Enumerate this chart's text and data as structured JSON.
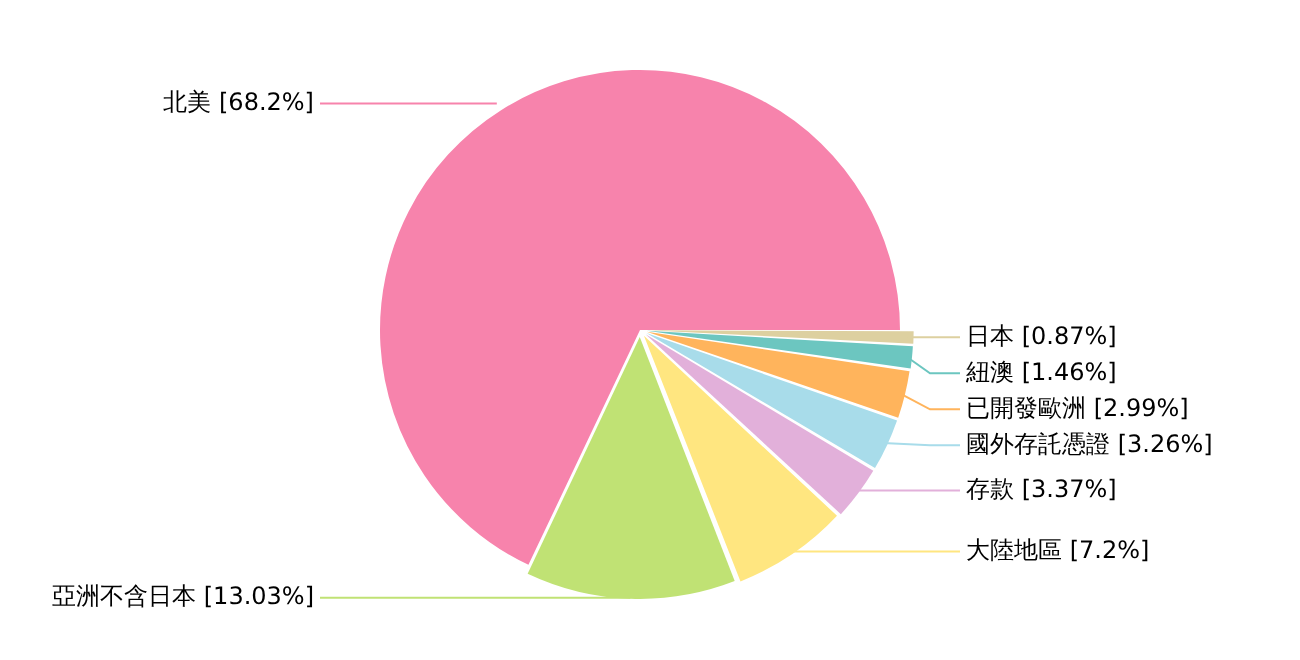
{
  "chart_data": {
    "type": "pie",
    "categories": [
      "北美",
      "日本",
      "紐澳",
      "已開發歐洲",
      "國外存託憑證",
      "存款",
      "大陸地區",
      "亞洲不含日本"
    ],
    "values": [
      68.2,
      0.87,
      1.46,
      2.99,
      3.26,
      3.37,
      7.2,
      13.03
    ],
    "value_labels": [
      "[68.2%]",
      "[0.87%]",
      "[1.46%]",
      "[2.99%]",
      "[3.26%]",
      "[3.37%]",
      "[7.2%]",
      "[13.03%]"
    ],
    "colors": [
      "#f783ac",
      "#ddd0a0",
      "#6cc6c0",
      "#ffb45c",
      "#a8dcea",
      "#e2b0da",
      "#ffe680",
      "#c0e274"
    ],
    "legend": false
  }
}
